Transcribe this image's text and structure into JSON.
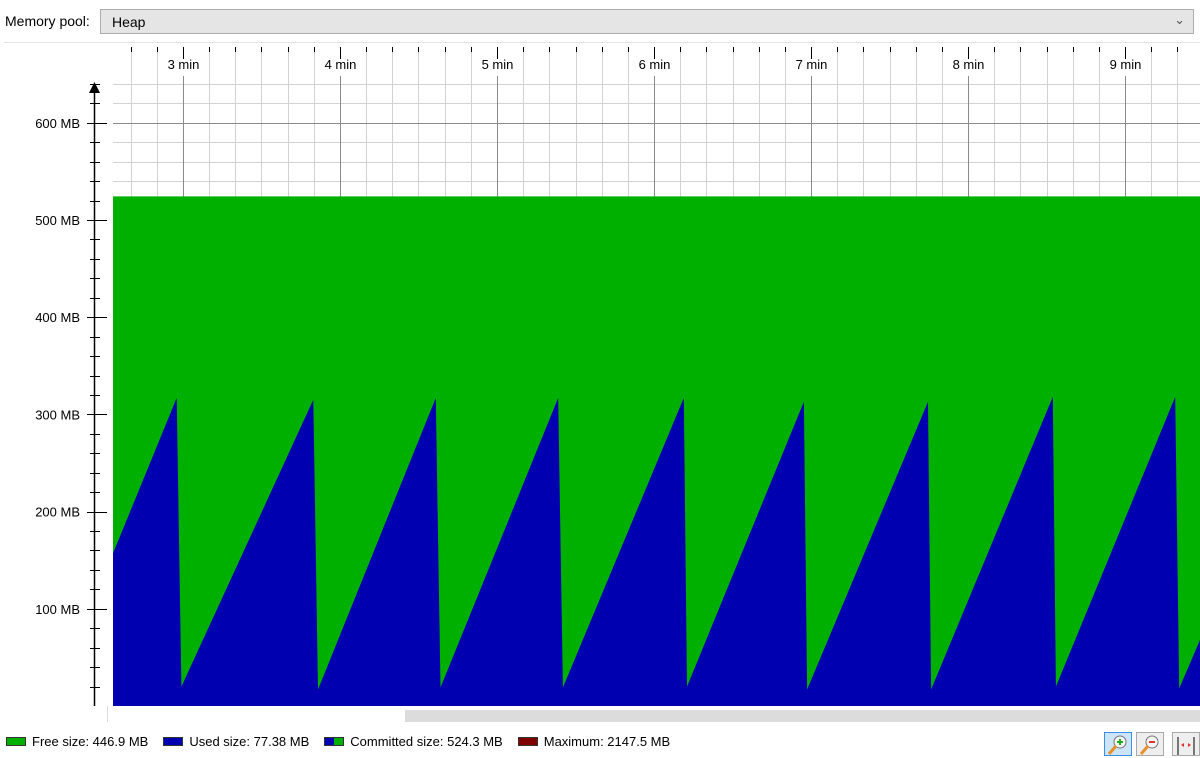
{
  "toolbar": {
    "memory_pool_label": "Memory pool:",
    "memory_pool_value": "Heap",
    "dropdown_icon": "chevron-down-icon"
  },
  "legend": [
    {
      "label": "Free size: 446.9 MB",
      "color": "#00b000"
    },
    {
      "label": "Used size: 77.38 MB",
      "color": "#0000b0"
    },
    {
      "label": "Committed size: 524.3 MB",
      "color": "split-blue-green"
    },
    {
      "label": "Maximum: 2147.5 MB",
      "color": "#800000"
    }
  ],
  "buttons": [
    {
      "name": "zoom-in-button",
      "icon": "zoom-in-icon"
    },
    {
      "name": "zoom-out-button",
      "icon": "zoom-out-icon"
    },
    {
      "name": "fit-button",
      "icon": "fit-width-icon"
    }
  ],
  "chart_data": {
    "type": "area",
    "xunit": "min",
    "xlim": [
      2.55,
      9.48
    ],
    "ylim": [
      0,
      650
    ],
    "x_ticks": [
      {
        "value": 3,
        "label": "3 min"
      },
      {
        "value": 4,
        "label": "4 min"
      },
      {
        "value": 5,
        "label": "5 min"
      },
      {
        "value": 6,
        "label": "6 min"
      },
      {
        "value": 7,
        "label": "7 min"
      },
      {
        "value": 8,
        "label": "8 min"
      },
      {
        "value": 9,
        "label": "9 min"
      }
    ],
    "y_ticks": [
      {
        "value": 100,
        "label": "100 MB"
      },
      {
        "value": 200,
        "label": "200 MB"
      },
      {
        "value": 300,
        "label": "300 MB"
      },
      {
        "value": 400,
        "label": "400 MB"
      },
      {
        "value": 500,
        "label": "500 MB"
      },
      {
        "value": 600,
        "label": "600 MB"
      }
    ],
    "grid": true,
    "committed_mb": 524.3,
    "colors": {
      "free": "#00b000",
      "used": "#0000b0"
    },
    "used": {
      "x": [
        2.55,
        2.96,
        2.99,
        3.83,
        3.86,
        4.61,
        4.64,
        5.39,
        5.42,
        6.19,
        6.21,
        6.955,
        6.975,
        7.745,
        7.765,
        8.54,
        8.56,
        9.32,
        9.345,
        9.48
      ],
      "y": [
        157,
        317,
        20,
        315,
        17,
        317,
        19,
        317,
        19,
        317,
        20,
        313,
        17,
        313,
        17,
        318,
        20,
        318,
        18,
        68
      ]
    }
  }
}
